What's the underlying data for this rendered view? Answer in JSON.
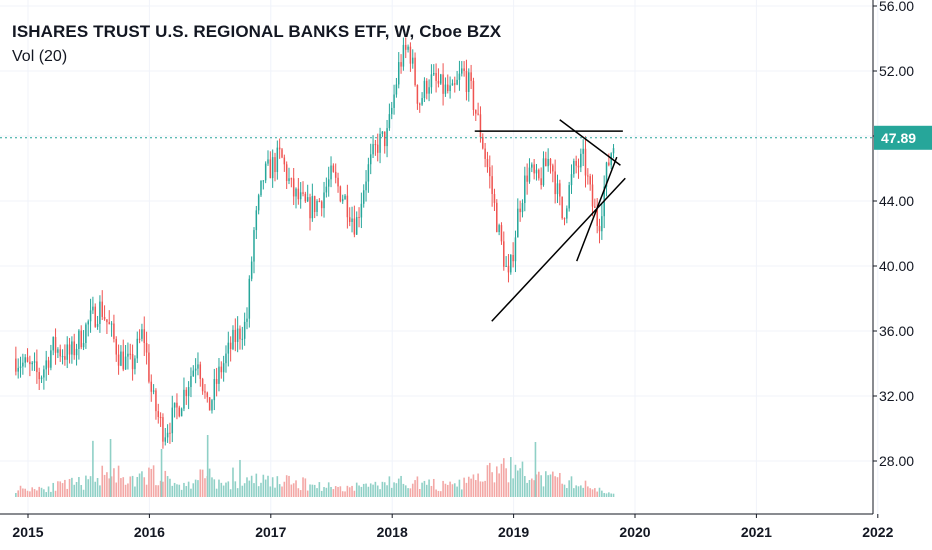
{
  "header": {
    "symbol_title": "ISHARES TRUST U.S. REGIONAL BANKS ETF, W, Cboe BZX",
    "indicator_label": "Vol (20)"
  },
  "colors": {
    "up": "#26a69a",
    "down": "#ef5350",
    "up_volume": "#8fd0c6",
    "down_volume": "#f3a7a5",
    "price_line": "#26a69a",
    "grid": "#f0f3fa",
    "trendline": "#000000",
    "axis_border": "#131722"
  },
  "price_tag": {
    "value": "47.89"
  },
  "chart_data": {
    "type": "candlestick",
    "timeframe": "W",
    "symbol_title": "ISHARES TRUST U.S. REGIONAL BANKS ETF, W, Cboe BZX",
    "indicator": "Vol (20)",
    "y_axis": {
      "side": "right",
      "ticks": [
        "28.00",
        "32.00",
        "36.00",
        "40.00",
        "44.00",
        "48.00",
        "52.00",
        "56.00"
      ],
      "range": [
        25.8,
        56.2
      ]
    },
    "x_axis": {
      "ticks": [
        "2015",
        "2016",
        "2017",
        "2018",
        "2019",
        "2020",
        "2021",
        "2022"
      ],
      "range": [
        2014.9,
        2022.1
      ]
    },
    "last_price": 47.89,
    "grid": true,
    "close_path": [
      [
        2014.9,
        34.3
      ],
      [
        2015.1,
        33.2
      ],
      [
        2015.2,
        35.0
      ],
      [
        2015.35,
        34.5
      ],
      [
        2015.5,
        36.5
      ],
      [
        2015.6,
        37.5
      ],
      [
        2015.68,
        36.0
      ],
      [
        2015.75,
        34.5
      ],
      [
        2015.85,
        33.8
      ],
      [
        2015.95,
        36.0
      ],
      [
        2016.02,
        32.0
      ],
      [
        2016.08,
        30.5
      ],
      [
        2016.12,
        29.8
      ],
      [
        2016.22,
        31.0
      ],
      [
        2016.3,
        32.5
      ],
      [
        2016.4,
        34.5
      ],
      [
        2016.48,
        31.0
      ],
      [
        2016.58,
        33.5
      ],
      [
        2016.7,
        35.5
      ],
      [
        2016.8,
        36.5
      ],
      [
        2016.86,
        42.0
      ],
      [
        2016.94,
        45.5
      ],
      [
        2017.08,
        46.8
      ],
      [
        2017.18,
        44.5
      ],
      [
        2017.3,
        43.5
      ],
      [
        2017.4,
        44.0
      ],
      [
        2017.5,
        45.5
      ],
      [
        2017.62,
        44.0
      ],
      [
        2017.7,
        42.5
      ],
      [
        2017.78,
        45.5
      ],
      [
        2017.88,
        47.5
      ],
      [
        2017.96,
        48.0
      ],
      [
        2018.06,
        52.5
      ],
      [
        2018.14,
        53.5
      ],
      [
        2018.22,
        50.0
      ],
      [
        2018.3,
        51.5
      ],
      [
        2018.4,
        51.0
      ],
      [
        2018.5,
        50.5
      ],
      [
        2018.58,
        52.0
      ],
      [
        2018.64,
        51.0
      ],
      [
        2018.72,
        48.5
      ],
      [
        2018.8,
        45.5
      ],
      [
        2018.88,
        42.0
      ],
      [
        2018.96,
        39.0
      ],
      [
        2019.04,
        43.5
      ],
      [
        2019.12,
        46.0
      ],
      [
        2019.2,
        45.0
      ],
      [
        2019.3,
        46.8
      ],
      [
        2019.4,
        43.0
      ],
      [
        2019.5,
        46.0
      ],
      [
        2019.58,
        46.5
      ],
      [
        2019.64,
        44.0
      ],
      [
        2019.7,
        42.5
      ],
      [
        2019.76,
        45.5
      ],
      [
        2019.8,
        47.0
      ],
      [
        2019.84,
        47.8
      ]
    ],
    "volume_profile": [
      [
        2014.9,
        0.8
      ],
      [
        2015.2,
        1.0
      ],
      [
        2015.55,
        1.6
      ],
      [
        2015.68,
        3.2
      ],
      [
        2015.8,
        1.2
      ],
      [
        2016.05,
        2.4
      ],
      [
        2016.12,
        1.8
      ],
      [
        2016.3,
        1.0
      ],
      [
        2016.48,
        2.6
      ],
      [
        2016.6,
        1.0
      ],
      [
        2016.9,
        1.7
      ],
      [
        2017.2,
        1.4
      ],
      [
        2017.6,
        0.9
      ],
      [
        2018.1,
        1.6
      ],
      [
        2018.5,
        1.0
      ],
      [
        2018.8,
        2.3
      ],
      [
        2019.0,
        2.9
      ],
      [
        2019.15,
        1.9
      ],
      [
        2019.4,
        1.7
      ],
      [
        2019.6,
        1.1
      ],
      [
        2019.8,
        0.4
      ]
    ],
    "trendlines": [
      {
        "from": [
          2018.68,
          48.3
        ],
        "to": [
          2019.9,
          48.3
        ]
      },
      {
        "from": [
          2018.82,
          36.6
        ],
        "to": [
          2019.92,
          45.4
        ]
      },
      {
        "from": [
          2019.38,
          49.0
        ],
        "to": [
          2019.88,
          46.2
        ]
      },
      {
        "from": [
          2019.52,
          40.3
        ],
        "to": [
          2019.85,
          46.7
        ]
      }
    ],
    "price_line": {
      "value": 47.89,
      "style": "dotted"
    }
  }
}
